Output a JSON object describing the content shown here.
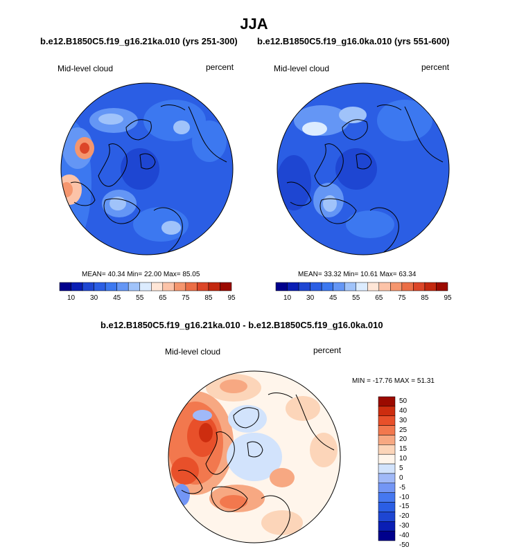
{
  "title": "JJA",
  "colors": {
    "seq": [
      "#00008c",
      "#0a1eb4",
      "#1e46d2",
      "#2b5ee4",
      "#3c78f0",
      "#6496f5",
      "#a0c3fa",
      "#dcecff",
      "#ffe6d7",
      "#fcc3a8",
      "#f5966e",
      "#eb6e46",
      "#dc4628",
      "#c3280f",
      "#9b0a00"
    ],
    "diff": [
      "#00008c",
      "#0a1eb4",
      "#1e46d2",
      "#2b5ee4",
      "#4678f0",
      "#7396f5",
      "#a0b9f8",
      "#d2e3fc",
      "#fff5eb",
      "#fcd5b9",
      "#f7a882",
      "#f2784e",
      "#e8502a",
      "#cd2d0f",
      "#9b0a00"
    ]
  },
  "panels": [
    {
      "subtitle": "b.e12.B1850C5.f19_g16.21ka.010 (yrs 251-300)",
      "left_label": "Mid-level cloud",
      "right_label": "percent",
      "stats": "MEAN=  40.34  Min=  22.00  Max=  85.05",
      "colorbar_ticks": [
        "10",
        "30",
        "45",
        "55",
        "65",
        "75",
        "85",
        "95"
      ]
    },
    {
      "subtitle": "b.e12.B1850C5.f19_g16.0ka.010 (yrs 551-600)",
      "left_label": "Mid-level cloud",
      "right_label": "percent",
      "stats": "MEAN=  33.32  Min=  10.61  Max=  63.34",
      "colorbar_ticks": [
        "10",
        "30",
        "45",
        "55",
        "65",
        "75",
        "85",
        "95"
      ]
    }
  ],
  "difference": {
    "subtitle": "b.e12.B1850C5.f19_g16.21ka.010 - b.e12.B1850C5.f19_g16.0ka.010",
    "left_label": "Mid-level cloud",
    "right_label": "percent",
    "stats": "MIN = -17.76 MAX =  51.31",
    "colorbar_ticks": [
      "50",
      "40",
      "30",
      "25",
      "20",
      "15",
      "10",
      "5",
      "0",
      "-5",
      "-10",
      "-15",
      "-20",
      "-30",
      "-40",
      "-50"
    ]
  }
}
